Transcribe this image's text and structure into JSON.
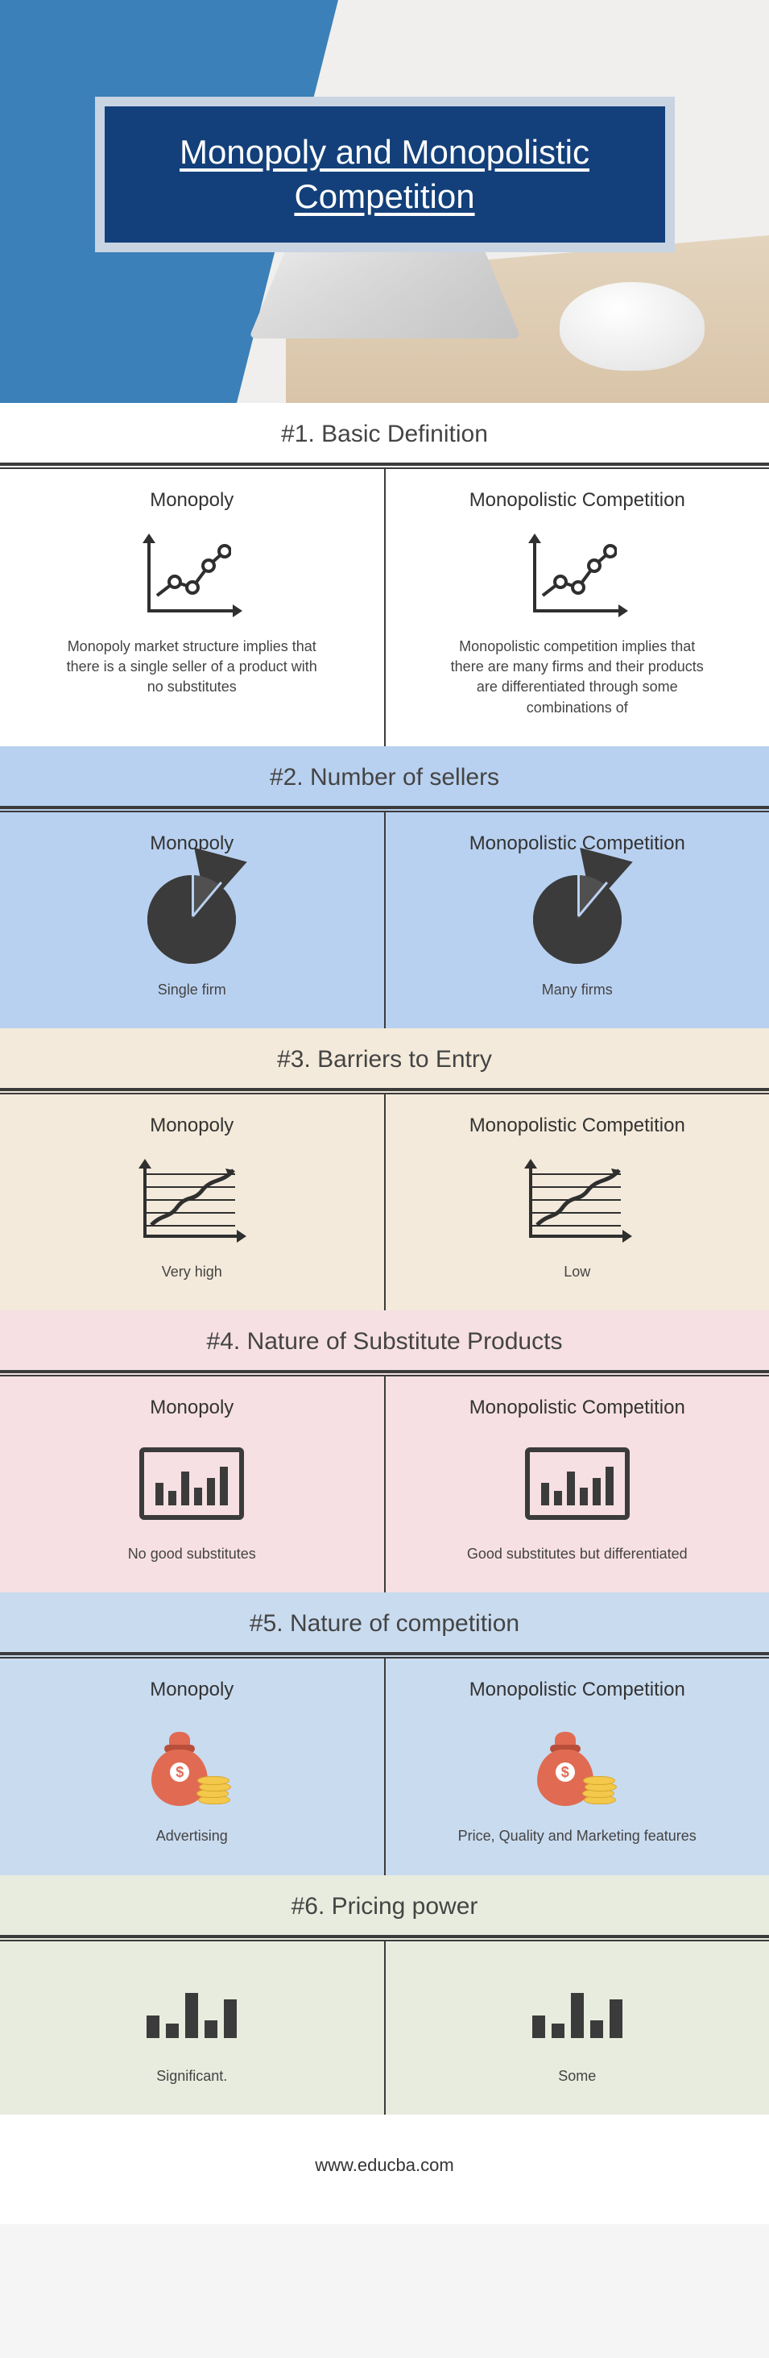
{
  "title": "Monopoly and Monopolistic Competition",
  "labels": {
    "monopoly": "Monopoly",
    "monopolistic": "Monopolistic Competition"
  },
  "sections": [
    {
      "heading": "#1. Basic Definition",
      "bg": "bg-white",
      "icon": "linechart",
      "left": "Monopoly market structure implies that there is a single seller of a product with no substitutes",
      "right": "Monopolistic competition implies that there are many firms and their products are differentiated through some combinations of"
    },
    {
      "heading": "#2. Number of sellers",
      "bg": "bg-blue",
      "icon": "pie",
      "left": "Single firm",
      "right": "Many firms"
    },
    {
      "heading": "#3. Barriers to Entry",
      "bg": "bg-tan",
      "icon": "gridchart",
      "left": "Very high",
      "right": "Low"
    },
    {
      "heading": "#4. Nature of Substitute Products",
      "bg": "bg-pink",
      "icon": "barbox",
      "left": "No good substitutes",
      "right": "Good substitutes but differentiated"
    },
    {
      "heading": "#5. Nature of competition",
      "bg": "bg-ltblue",
      "icon": "money",
      "left": "Advertising",
      "right": "Price, Quality and Marketing features"
    },
    {
      "heading": "#6. Pricing power",
      "bg": "bg-sage",
      "icon": "bars",
      "hideColHeads": true,
      "left": "Significant.",
      "right": "Some"
    }
  ],
  "footer": "www.educba.com",
  "iconBars": {
    "barbox": [
      28,
      18,
      42,
      22,
      34,
      48
    ],
    "bars": [
      28,
      18,
      56,
      22,
      48
    ]
  },
  "colors": {
    "hero_blue": "#3b80b8",
    "title_bg": "#13407a",
    "title_border": "#c8d4e2",
    "rule": "#3b3b3b",
    "section_bgs": {
      "bg-white": "#ffffff",
      "bg-blue": "#b9d1f0",
      "bg-tan": "#f3eadb",
      "bg-pink": "#f6e0e3",
      "bg-ltblue": "#c9dbef",
      "bg-sage": "#e7ecde"
    },
    "money_bag": "#e06b52",
    "coin": "#f3c84b"
  }
}
